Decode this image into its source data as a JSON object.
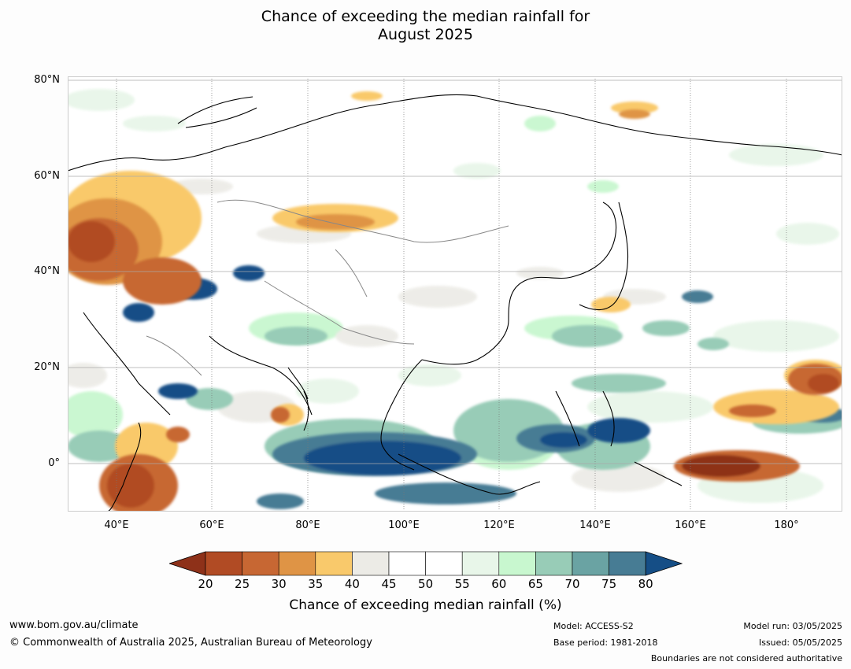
{
  "title_line1": "Chance of exceeding the median rainfall for",
  "title_line2": "August 2025",
  "map": {
    "lat_labels": [
      "80°N",
      "60°N",
      "40°N",
      "20°N",
      "0°"
    ],
    "lon_labels": [
      "40°E",
      "60°E",
      "80°E",
      "100°E",
      "120°E",
      "140°E",
      "160°E",
      "180°"
    ]
  },
  "colorbar": {
    "ticks": [
      "20",
      "25",
      "30",
      "35",
      "40",
      "45",
      "50",
      "55",
      "60",
      "65",
      "70",
      "75",
      "80"
    ],
    "label": "Chance of exceeding median rainfall (%)",
    "colors": [
      "#8e3119",
      "#b14b24",
      "#c76733",
      "#df9445",
      "#f9c96b",
      "#ecebe6",
      "#ffffff",
      "#ffffff",
      "#e8f6e9",
      "#c8f7cf",
      "#98ccb7",
      "#6aa3a3",
      "#477c94",
      "#154e86"
    ]
  },
  "footer": {
    "website": "www.bom.gov.au/climate",
    "copyright": "© Commonwealth of Australia 2025, Australian Bureau of Meteorology",
    "model": "Model: ACCESS-S2",
    "base_period": "Base period: 1981-2018",
    "model_run": "Model run: 03/05/2025",
    "issued": "Issued: 05/05/2025",
    "disclaimer": "Boundaries are not considered authoritative"
  }
}
